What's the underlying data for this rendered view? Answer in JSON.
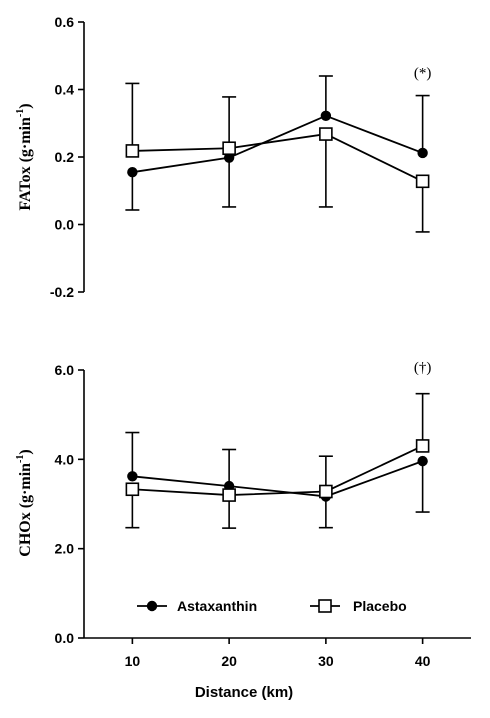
{
  "chart_data": [
    {
      "type": "line",
      "ylabel": "FATox (g·min",
      "ylabel_sup": "-1",
      "ylabel_close": ")",
      "xlim": [
        5,
        45
      ],
      "ylim": [
        -0.2,
        0.6
      ],
      "yticks": [
        "-0.2",
        "0.0",
        "0.2",
        "0.4",
        "0.6"
      ],
      "ytick_values": [
        -0.2,
        0.0,
        0.2,
        0.4,
        0.6
      ],
      "x": [
        10,
        20,
        30,
        40
      ],
      "series": [
        {
          "name": "Astaxanthin",
          "marker": "filled-circle",
          "values": [
            0.155,
            0.198,
            0.322,
            0.212
          ],
          "err_low": [
            0.043,
            null,
            null,
            null
          ],
          "err_high": [
            null,
            null,
            0.44,
            0.382
          ]
        },
        {
          "name": "Placebo",
          "marker": "open-square",
          "values": [
            0.218,
            0.226,
            0.268,
            0.128
          ],
          "err_low": [
            null,
            0.052,
            0.052,
            -0.022
          ],
          "err_high": [
            0.418,
            0.378,
            null,
            null
          ]
        }
      ],
      "annotation": {
        "text": "(*)",
        "x": 40,
        "y": 0.435
      }
    },
    {
      "type": "line",
      "ylabel": "CHOx (g·min",
      "ylabel_sup": "-1",
      "ylabel_close": ")",
      "xlabel": "Distance (km)",
      "xlim": [
        5,
        45
      ],
      "ylim": [
        0.0,
        6.0
      ],
      "yticks": [
        "0.0",
        "2.0",
        "4.0",
        "6.0"
      ],
      "ytick_values": [
        0.0,
        2.0,
        4.0,
        6.0
      ],
      "x": [
        10,
        20,
        30,
        40
      ],
      "xticks": [
        "10",
        "20",
        "30",
        "40"
      ],
      "series": [
        {
          "name": "Astaxanthin",
          "marker": "filled-circle",
          "values": [
            3.62,
            3.4,
            3.17,
            3.96
          ],
          "err_low": [
            null,
            null,
            null,
            2.82
          ],
          "err_high": [
            4.6,
            4.22,
            4.07,
            null
          ]
        },
        {
          "name": "Placebo",
          "marker": "open-square",
          "values": [
            3.33,
            3.2,
            3.28,
            4.3
          ],
          "err_low": [
            2.47,
            2.46,
            2.47,
            null
          ],
          "err_high": [
            null,
            null,
            null,
            5.47
          ]
        }
      ],
      "annotation": {
        "text": "(†)",
        "x": 40,
        "y": 5.95
      }
    }
  ],
  "legend": {
    "placement": "bottom-center",
    "items": [
      {
        "label": "Astaxanthin",
        "marker": "filled-circle"
      },
      {
        "label": "Placebo",
        "marker": "open-square"
      }
    ]
  }
}
